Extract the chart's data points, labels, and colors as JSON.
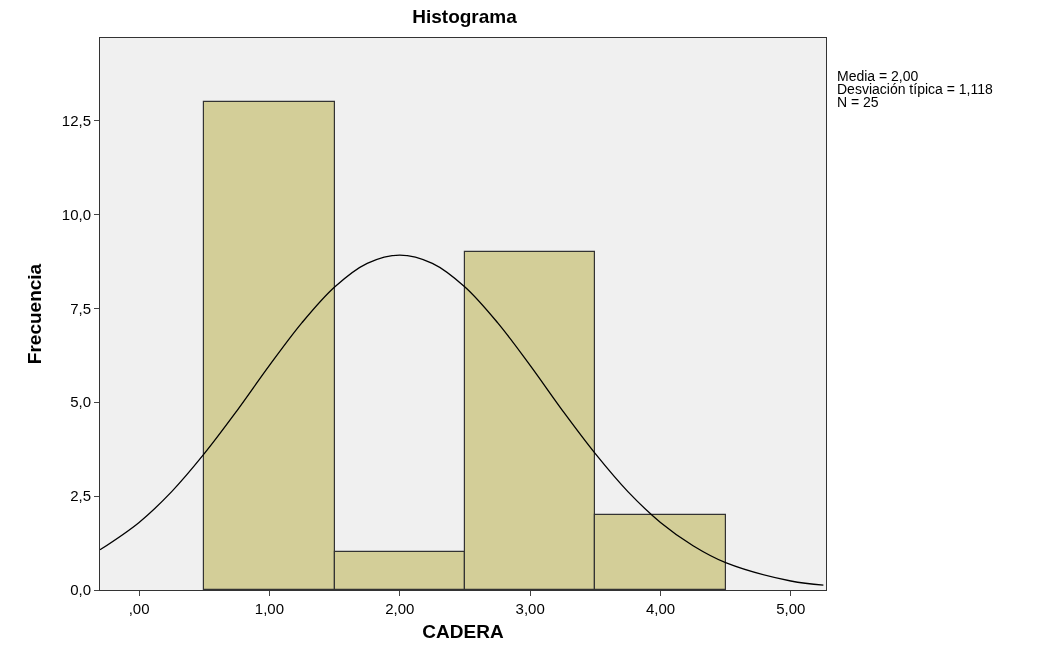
{
  "chart_data": {
    "type": "histogram",
    "title": "Histograma",
    "xlabel": "CADERA",
    "ylabel": "Frecuencia",
    "bins": [
      0.5,
      1.5,
      2.5,
      3.5,
      4.5
    ],
    "values": [
      13,
      1,
      9,
      2
    ],
    "color": "#d3ce98",
    "series": [
      {
        "type": "line",
        "color": "#000000",
        "x": [
          -0.3,
          0,
          0.25,
          0.5,
          0.75,
          1,
          1.25,
          1.5,
          1.75,
          2,
          2.25,
          2.5,
          2.75,
          3,
          3.25,
          3.5,
          3.75,
          4,
          4.25,
          4.5,
          5,
          5.25
        ],
        "values": [
          1.07,
          1.8,
          2.62,
          3.63,
          4.77,
          5.98,
          7.12,
          8.07,
          8.7,
          8.92,
          8.7,
          8.07,
          7.12,
          5.98,
          4.77,
          3.63,
          2.62,
          1.8,
          1.18,
          0.73,
          0.24,
          0.13
        ]
      }
    ],
    "xlim": [
      -0.3,
      5.27
    ],
    "ylim": [
      0,
      14.7
    ],
    "xticks": [
      {
        "value": 0,
        "label": ",00"
      },
      {
        "value": 1,
        "label": "1,00"
      },
      {
        "value": 2,
        "label": "2,00"
      },
      {
        "value": 3,
        "label": "3,00"
      },
      {
        "value": 4,
        "label": "4,00"
      },
      {
        "value": 5,
        "label": "5,00"
      }
    ],
    "yticks": [
      {
        "value": 0,
        "label": "0,0"
      },
      {
        "value": 2.5,
        "label": "2,5"
      },
      {
        "value": 5,
        "label": "5,0"
      },
      {
        "value": 7.5,
        "label": "7,5"
      },
      {
        "value": 10,
        "label": "10,0"
      },
      {
        "value": 12.5,
        "label": "12,5"
      }
    ],
    "annotations": [
      "Media = 2,00",
      "Desviación típica = 1,118",
      "N = 25"
    ],
    "grid": false
  }
}
